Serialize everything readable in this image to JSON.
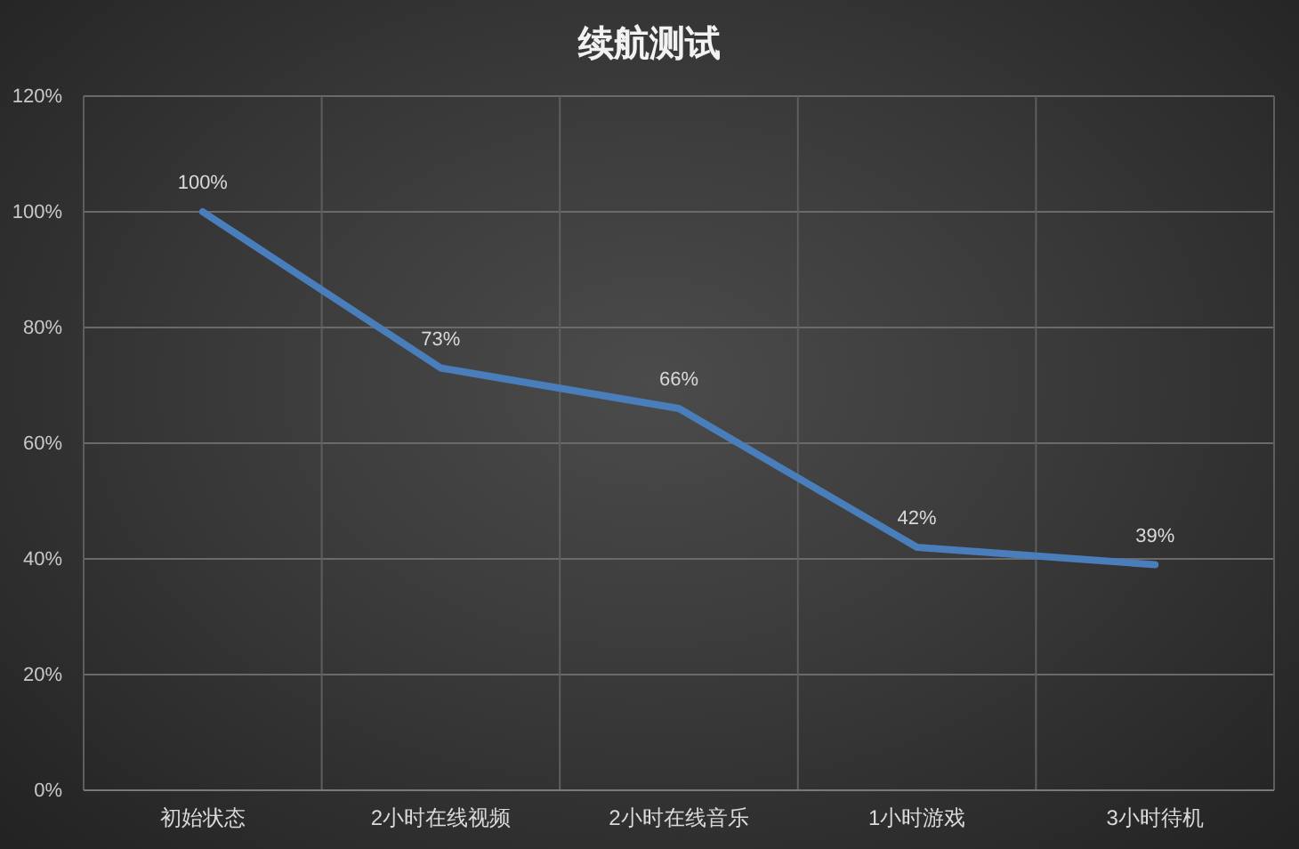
{
  "chart_data": {
    "type": "line",
    "title": "续航测试",
    "categories": [
      "初始状态",
      "2小时在线视频",
      "2小时在线音乐",
      "1小时游戏",
      "3小时待机"
    ],
    "series": [
      {
        "color": "#4a7ebb",
        "values": [
          100,
          73,
          66,
          42,
          39
        ],
        "value_labels": [
          "100%",
          "73%",
          "66%",
          "42%",
          "39%"
        ]
      }
    ],
    "ylim": [
      0,
      120
    ],
    "yticks": [
      {
        "value": 0,
        "label": "0%"
      },
      {
        "value": 20,
        "label": "20%"
      },
      {
        "value": 40,
        "label": "40%"
      },
      {
        "value": 60,
        "label": "60%"
      },
      {
        "value": 80,
        "label": "80%"
      },
      {
        "value": 100,
        "label": "100%"
      },
      {
        "value": 120,
        "label": "120%"
      }
    ],
    "grid": true
  }
}
